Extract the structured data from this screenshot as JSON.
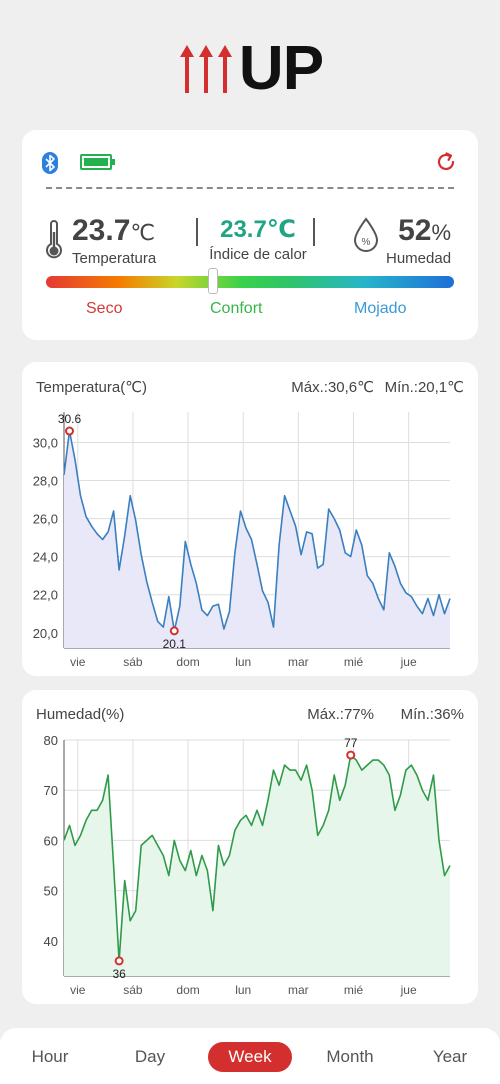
{
  "brand": {
    "wordmark": "UP",
    "accent": "#d42f2f"
  },
  "status": {
    "icons": [
      "bluetooth-icon",
      "battery-full-icon",
      "refresh-icon"
    ],
    "temperature": {
      "value": "23.7",
      "unit": "℃",
      "label": "Temperatura"
    },
    "heat_index": {
      "value": "23.7℃",
      "label": "Índice de calor"
    },
    "humidity": {
      "value": "52",
      "unit": "%",
      "label": "Humedad"
    },
    "comfort_scale": {
      "dry": "Seco",
      "comfort": "Confort",
      "wet": "Mojado",
      "position": 0.41
    }
  },
  "temp_chart": {
    "title": "Temperatura(℃)",
    "max_label": "Máx.:30,6℃",
    "min_label": "Mín.:20,1℃"
  },
  "hum_chart": {
    "title": "Humedad(%)",
    "max_label": "Máx.:77%",
    "min_label": "Mín.:36%"
  },
  "chart_data": [
    {
      "type": "line",
      "title": "Temperatura(℃)",
      "color": "#3a7fbf",
      "fill": "#e9e8f8",
      "x_ticks": [
        "vie",
        "sáb",
        "dom",
        "lun",
        "mar",
        "mié",
        "jue"
      ],
      "y_ticks": [
        "20,0",
        "22,0",
        "24,0",
        "26,0",
        "28,0",
        "30,0"
      ],
      "ylim": [
        19.2,
        31.6
      ],
      "x": [
        0,
        0.3,
        0.6,
        0.9,
        1.2,
        1.5,
        1.8,
        2.1,
        2.4,
        2.7,
        3.0,
        3.3,
        3.6,
        3.9,
        4.2,
        4.5,
        4.8,
        5.1,
        5.4,
        5.7,
        6.0,
        6.3,
        6.6,
        6.9,
        7.2,
        7.5,
        7.8,
        8.1,
        8.4,
        8.7,
        9.0,
        9.3,
        9.6,
        9.9,
        10.2,
        10.5,
        10.8,
        11.1,
        11.4,
        11.7,
        12.0,
        12.3,
        12.6,
        12.9,
        13.2,
        13.5,
        13.8,
        14.1,
        14.4,
        14.7,
        15.0,
        15.3,
        15.6,
        15.9,
        16.2,
        16.5,
        16.8,
        17.1,
        17.4,
        17.7,
        18.0,
        18.3,
        18.6,
        18.9,
        19.2,
        19.5,
        19.8,
        20.1,
        20.4,
        20.7,
        21.0
      ],
      "values": [
        28.3,
        30.6,
        29.1,
        27.2,
        26.1,
        25.6,
        25.2,
        24.9,
        25.3,
        26.4,
        23.3,
        25.1,
        27.2,
        25.9,
        24.1,
        22.7,
        21.6,
        20.6,
        20.3,
        21.9,
        20.1,
        21.4,
        24.8,
        23.6,
        22.6,
        21.2,
        20.9,
        21.4,
        21.5,
        20.2,
        21.1,
        24.2,
        26.4,
        25.5,
        24.9,
        23.6,
        22.2,
        21.6,
        20.3,
        24.6,
        27.2,
        26.4,
        25.6,
        24.1,
        25.3,
        25.2,
        23.4,
        23.6,
        26.5,
        26.0,
        25.4,
        24.2,
        24.0,
        25.4,
        24.6,
        23.0,
        22.6,
        21.8,
        21.2,
        24.2,
        23.5,
        22.6,
        22.1,
        21.9,
        21.4,
        21.0,
        21.8,
        20.9,
        22.0,
        21.0,
        21.8
      ],
      "annotations": [
        {
          "label": "30.6",
          "x": 0.3,
          "y": 30.6,
          "position": "above"
        },
        {
          "label": "20.1",
          "x": 6.0,
          "y": 20.1,
          "position": "below"
        }
      ]
    },
    {
      "type": "line",
      "title": "Humedad(%)",
      "color": "#2f9b4a",
      "fill": "#e7f6ea",
      "x_ticks": [
        "vie",
        "sáb",
        "dom",
        "lun",
        "mar",
        "mié",
        "jue"
      ],
      "y_ticks": [
        "40",
        "50",
        "60",
        "70",
        "80"
      ],
      "ylim": [
        33,
        80
      ],
      "x": [
        0,
        0.3,
        0.6,
        0.9,
        1.2,
        1.5,
        1.8,
        2.1,
        2.4,
        2.7,
        3.0,
        3.3,
        3.6,
        3.9,
        4.2,
        4.5,
        4.8,
        5.1,
        5.4,
        5.7,
        6.0,
        6.3,
        6.6,
        6.9,
        7.2,
        7.5,
        7.8,
        8.1,
        8.4,
        8.7,
        9.0,
        9.3,
        9.6,
        9.9,
        10.2,
        10.5,
        10.8,
        11.1,
        11.4,
        11.7,
        12.0,
        12.3,
        12.6,
        12.9,
        13.2,
        13.5,
        13.8,
        14.1,
        14.4,
        14.7,
        15.0,
        15.3,
        15.6,
        15.9,
        16.2,
        16.5,
        16.8,
        17.1,
        17.4,
        17.7,
        18.0,
        18.3,
        18.6,
        18.9,
        19.2,
        19.5,
        19.8,
        20.1,
        20.4,
        20.7,
        21.0
      ],
      "values": [
        60,
        63,
        59,
        61,
        64,
        66,
        66,
        68,
        73,
        55,
        36,
        52,
        44,
        46,
        59,
        60,
        61,
        59,
        57,
        53,
        60,
        56,
        54,
        58,
        53,
        57,
        54,
        46,
        59,
        55,
        57,
        62,
        64,
        65,
        63,
        66,
        63,
        68,
        74,
        71,
        75,
        74,
        74,
        72,
        75,
        70,
        61,
        63,
        66,
        73,
        68,
        71,
        77,
        76,
        74,
        75,
        76,
        76,
        75,
        73,
        66,
        69,
        74,
        75,
        73,
        70,
        68,
        73,
        60,
        53,
        55
      ],
      "annotations": [
        {
          "label": "77",
          "x": 15.6,
          "y": 77,
          "position": "above"
        },
        {
          "label": "36",
          "x": 3.0,
          "y": 36,
          "position": "below"
        }
      ]
    }
  ],
  "range_tabs": [
    {
      "label": "Hour",
      "active": false
    },
    {
      "label": "Day",
      "active": false
    },
    {
      "label": "Week",
      "active": true
    },
    {
      "label": "Month",
      "active": false
    },
    {
      "label": "Year",
      "active": false
    }
  ]
}
